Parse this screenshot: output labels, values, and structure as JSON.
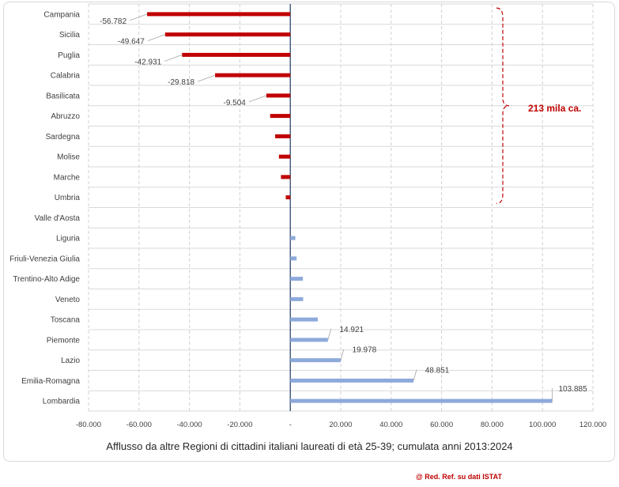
{
  "chart_data": {
    "type": "bar",
    "orientation": "horizontal",
    "categories": [
      "Campania",
      "Sicilia",
      "Puglia",
      "Calabria",
      "Basilicata",
      "Abruzzo",
      "Sardegna",
      "Molise",
      "Marche",
      "Umbria",
      "Valle d'Aosta",
      "Liguria",
      "Friuli-Venezia Giulia",
      "Trentino-Alto Adige",
      "Veneto",
      "Toscana",
      "Piemonte",
      "Lazio",
      "Emilia-Romagna",
      "Lombardia"
    ],
    "values": [
      -56782,
      -49647,
      -42931,
      -29818,
      -9504,
      -8000,
      -6000,
      -4500,
      -3700,
      -1800,
      0,
      2000,
      2500,
      5000,
      5100,
      10900,
      14921,
      19978,
      48851,
      103885
    ],
    "data_labels": [
      "-56.782",
      "-49.647",
      "-42.931",
      "-29.818",
      "-9.504",
      "",
      "",
      "",
      "",
      "",
      "",
      "",
      "",
      "",
      "",
      "",
      "14.921",
      "19.978",
      "48.851",
      "103.885"
    ],
    "xlim": [
      -80000,
      120000
    ],
    "tick_labels": [
      "-80.000",
      "-60.000",
      "-40.000",
      "-20.000",
      "-",
      "20.000",
      "40.000",
      "60.000",
      "80.000",
      "100.000",
      "120.000"
    ],
    "grid": "vertical dashed",
    "colors": {
      "negative": "#c00000",
      "positive": "#8eaadb",
      "axis": "#1f3864"
    },
    "annotation": {
      "text": "213 mila ca."
    },
    "title": ""
  },
  "caption": "Afflusso da altre Regioni di cittadini italiani laureati di età 25-39; cumulata anni 2013:2024",
  "credit": "@ Red. Ref. su dati ISTAT"
}
